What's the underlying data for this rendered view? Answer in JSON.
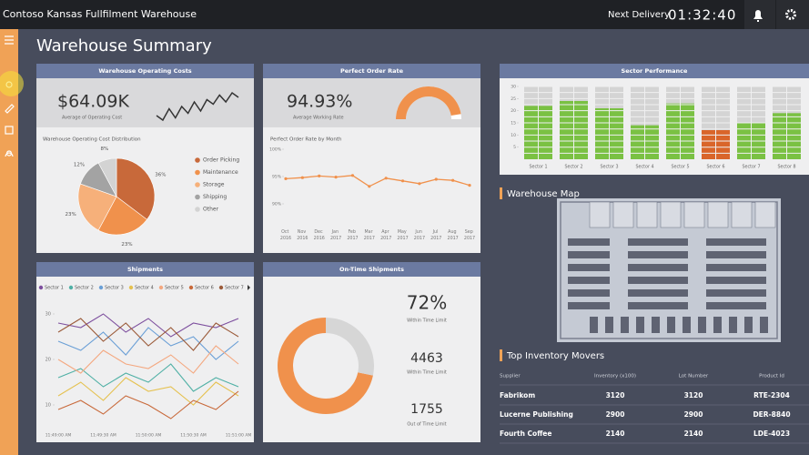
{
  "header": {
    "title": "Contoso Kansas Fullfilment Warehouse",
    "next_delivery_label": "Next Delivery",
    "countdown": "01:32:40"
  },
  "page_title": "Warehouse Summary",
  "operating_costs": {
    "title": "Warehouse Operating Costs",
    "kpi": {
      "value": 64090,
      "label": "$64.09K"
    },
    "kpi_label": "Average of Operating Cost",
    "trend": [
      40,
      30,
      55,
      35,
      60,
      45,
      70,
      50,
      75,
      65,
      85,
      70,
      90,
      80
    ],
    "chart": {
      "type": "pie",
      "title": "Warehouse Operating Cost Distribution",
      "categories": [
        "Order Picking",
        "Maintenance",
        "Storage",
        "Shipping",
        "Other"
      ],
      "values": [
        36,
        23,
        23,
        12,
        8
      ],
      "value_labels": [
        "36%",
        "23%",
        "23%",
        "12%",
        "8%"
      ],
      "colors": [
        "#c8693a",
        "#f0914c",
        "#f6b07a",
        "#a3a3a3",
        "#d3d3d3"
      ]
    }
  },
  "perfect_order": {
    "title": "Perfect Order Rate",
    "kpi": {
      "value": 94.93,
      "label": "94.93%"
    },
    "kpi_label": "Average Working Rate",
    "gauge_range": [
      0,
      100
    ],
    "chart": {
      "type": "line",
      "title": "Perfect Order Rate by Month",
      "categories": [
        "Oct 2016",
        "Nov 2016",
        "Dec 2016",
        "Jan 2017",
        "Feb 2017",
        "Mar 2017",
        "Apr 2017",
        "May 2017",
        "Jun 2017",
        "Jul 2017",
        "Aug 2017",
        "Sep 2017"
      ],
      "values": [
        94.6,
        94.8,
        95.1,
        94.9,
        95.2,
        93.2,
        94.7,
        94.2,
        93.7,
        94.5,
        94.3,
        93.4
      ],
      "color": "#f0914c",
      "ylim": [
        88,
        101
      ],
      "yticks": [
        {
          "value": 90,
          "label": "90%"
        },
        {
          "value": 95,
          "label": "95%"
        },
        {
          "value": 100,
          "label": "100%"
        }
      ]
    }
  },
  "shipments": {
    "title": "Shipments",
    "chart": {
      "type": "line",
      "categories": [
        "11:49:00 AM",
        null,
        "11:49:30 AM",
        null,
        "11:50:00 AM",
        null,
        "11:50:30 AM",
        null,
        "11:51:00 AM"
      ],
      "ylim": [
        5,
        33
      ],
      "yticks": [
        10,
        20,
        30
      ],
      "series": [
        {
          "name": "Sector 1",
          "color": "#7d4f9e",
          "values": [
            28,
            27,
            30,
            26,
            29,
            25,
            28,
            27,
            29
          ]
        },
        {
          "name": "Sector 2",
          "color": "#4fb0a5",
          "values": [
            16,
            18,
            14,
            17,
            15,
            19,
            13,
            16,
            14
          ]
        },
        {
          "name": "Sector 3",
          "color": "#6a9fd6",
          "values": [
            24,
            22,
            26,
            21,
            27,
            23,
            25,
            20,
            24
          ]
        },
        {
          "name": "Sector 4",
          "color": "#e5c14f",
          "values": [
            12,
            15,
            11,
            16,
            13,
            14,
            10,
            15,
            12
          ]
        },
        {
          "name": "Sector 5",
          "color": "#f4a880",
          "values": [
            20,
            17,
            22,
            19,
            18,
            21,
            17,
            23,
            19
          ]
        },
        {
          "name": "Sector 6",
          "color": "#c8693a",
          "values": [
            9,
            11,
            8,
            12,
            10,
            7,
            11,
            9,
            13
          ]
        },
        {
          "name": "Sector 7",
          "color": "#9b5b3a",
          "values": [
            26,
            29,
            24,
            28,
            23,
            27,
            22,
            28,
            25
          ]
        }
      ]
    }
  },
  "on_time": {
    "title": "On-Time Shipments",
    "percent_label": "72%",
    "kpi_labels": [
      "Within Time Limit",
      "Within Time Limit",
      "Out of Time Limit"
    ],
    "chart": {
      "type": "donut",
      "values": [
        4463,
        1755
      ],
      "colors": [
        "#f0914c",
        "#d6d6d6"
      ]
    }
  },
  "sector_performance": {
    "title": "Sector Performance",
    "chart": {
      "type": "bar",
      "categories": [
        "Sector 1",
        "Sector 2",
        "Sector 3",
        "Sector 4",
        "Sector 5",
        "Sector 6",
        "Sector 7",
        "Sector 8"
      ],
      "values": [
        22,
        24,
        21,
        14,
        23,
        12,
        15,
        19
      ],
      "colors": [
        "#7ac143",
        "#7ac143",
        "#7ac143",
        "#7ac143",
        "#7ac143",
        "#d9652a",
        "#7ac143",
        "#7ac143"
      ],
      "ylim": [
        0,
        30
      ],
      "yticks": [
        5,
        10,
        15,
        20,
        25,
        30
      ]
    }
  },
  "warehouse_map": {
    "title": "Warehouse Map"
  },
  "inventory": {
    "title": "Top Inventory Movers",
    "columns": [
      "Supplier",
      "Inventory (x100)",
      "Lot Number",
      "Product Id"
    ],
    "rows": [
      [
        "Fabrikom",
        "3120",
        "3120",
        "RTE-2304"
      ],
      [
        "Lucerne Publishing",
        "2900",
        "2900",
        "DER-8840"
      ],
      [
        "Fourth Coffee",
        "2140",
        "2140",
        "LDE-4023"
      ]
    ]
  }
}
